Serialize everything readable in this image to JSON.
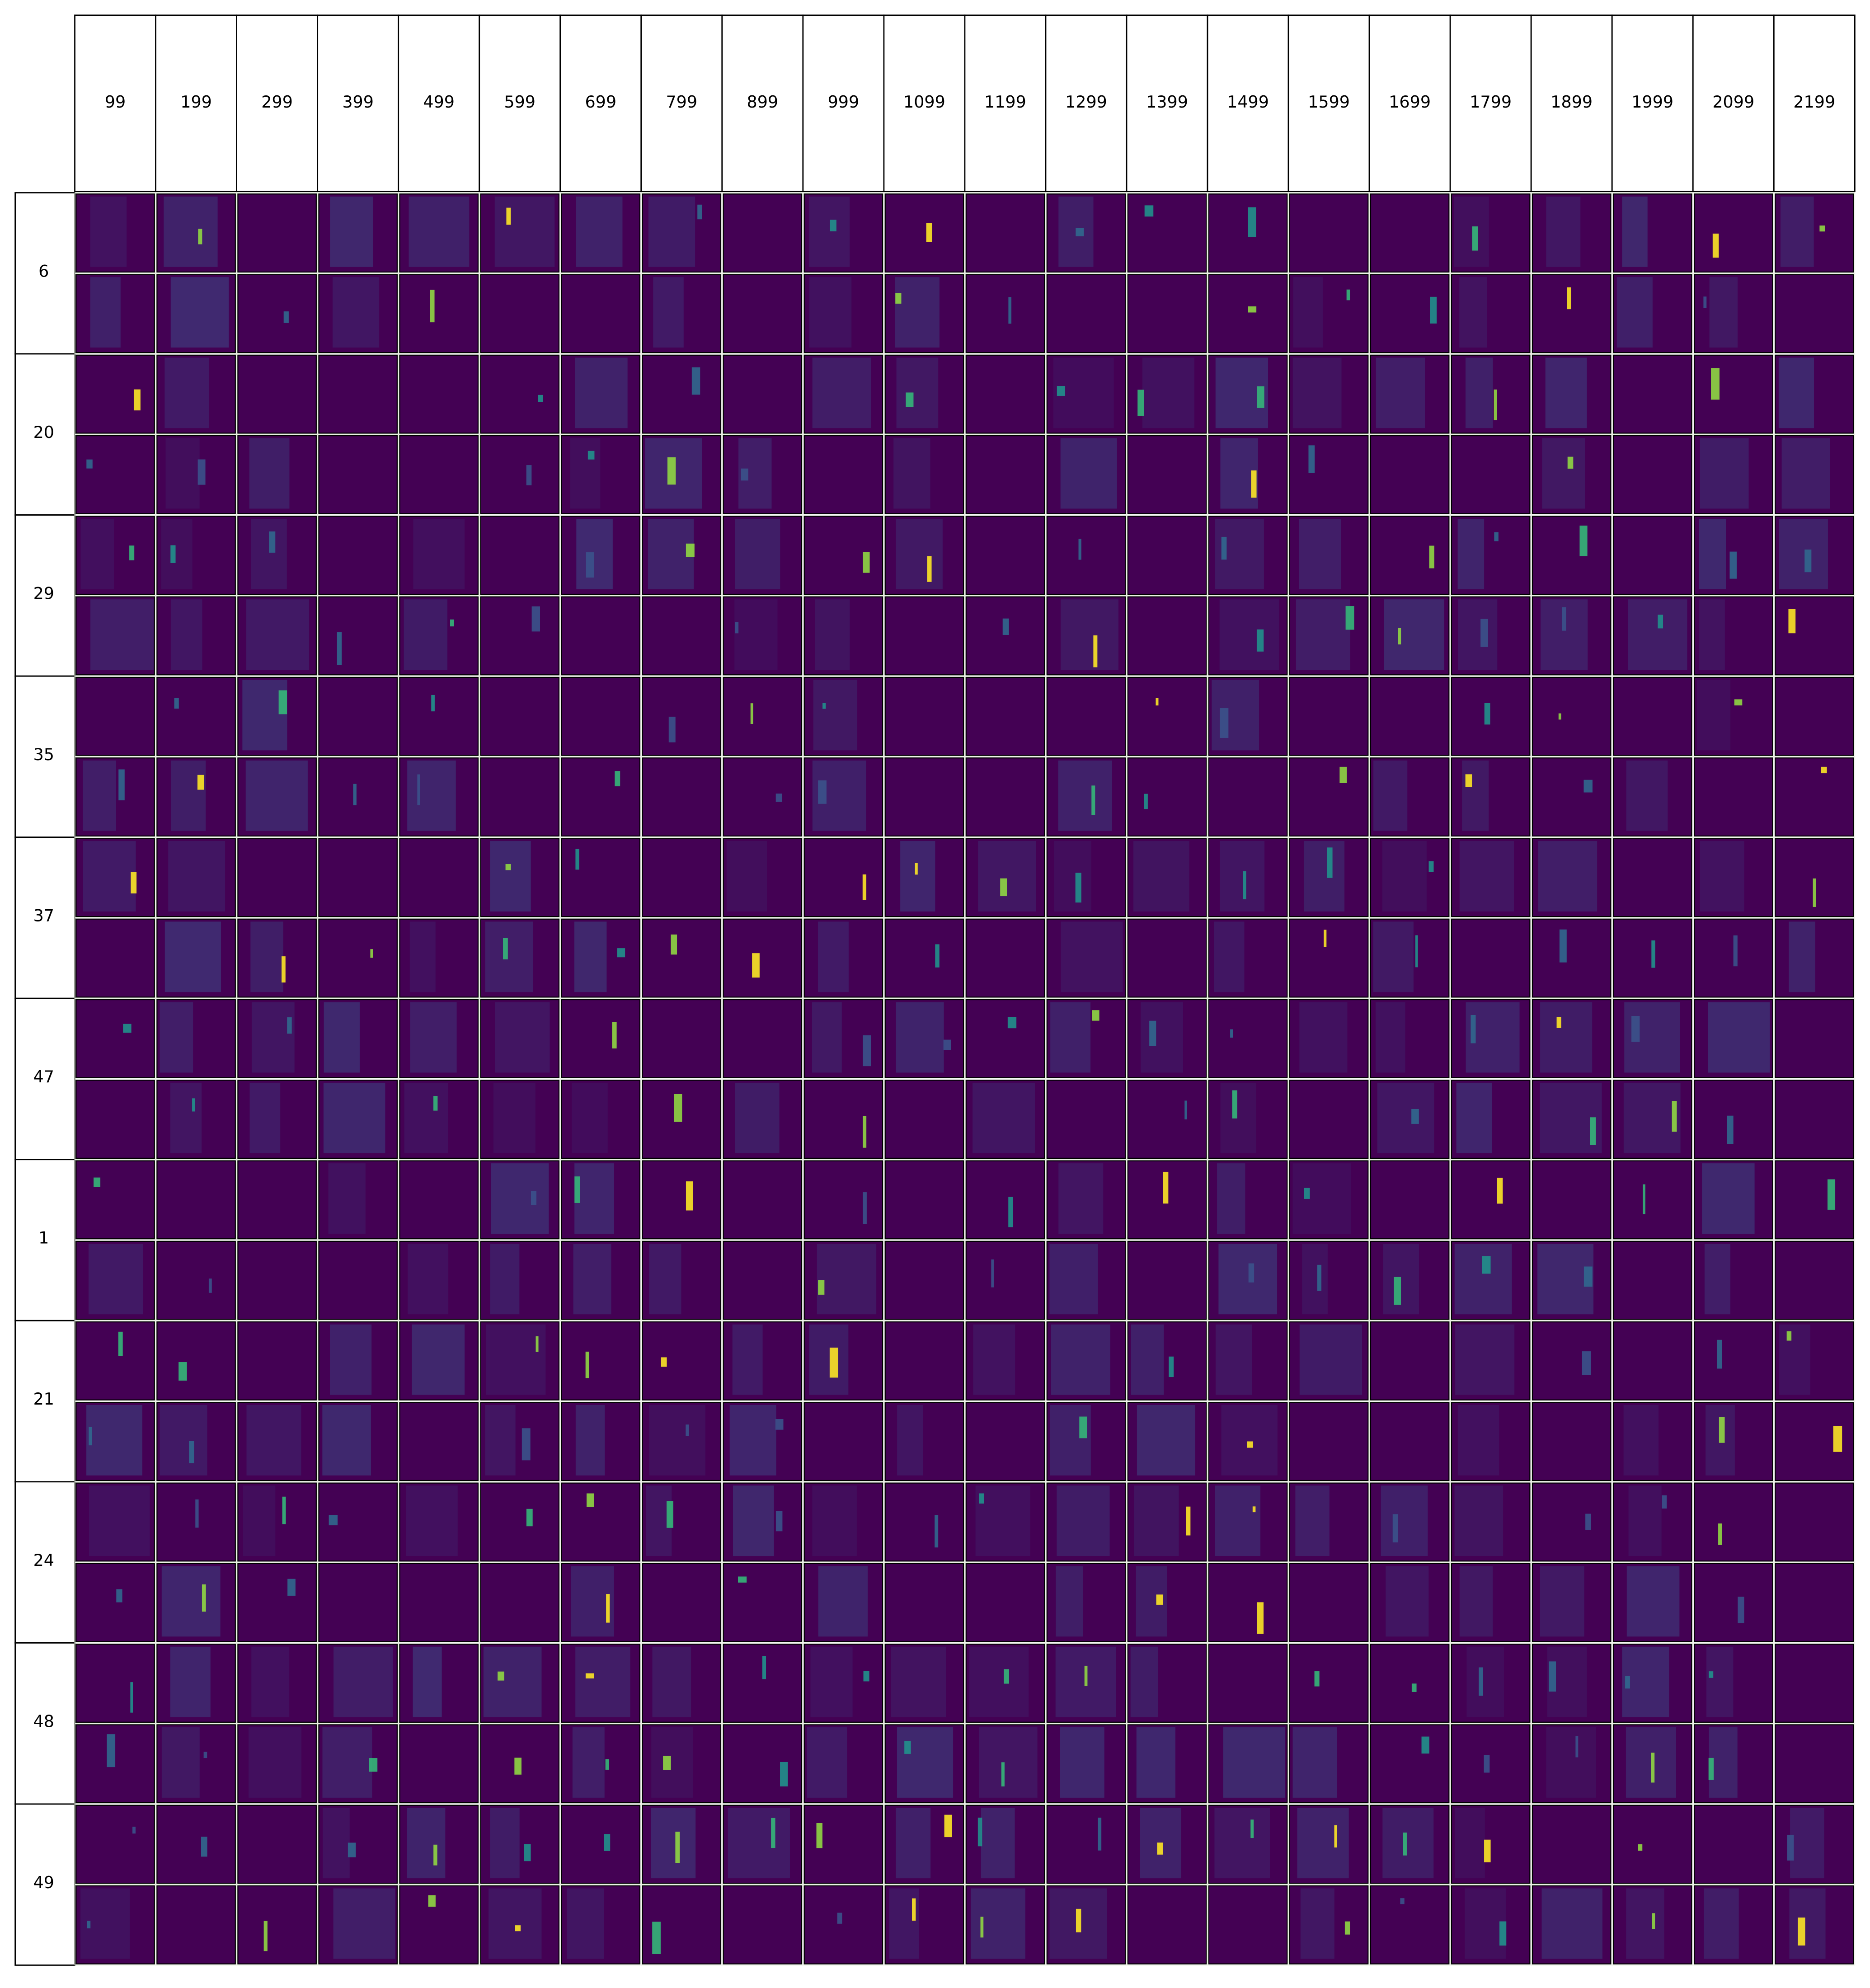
{
  "columns": [
    "99",
    "199",
    "299",
    "399",
    "499",
    "599",
    "699",
    "799",
    "899",
    "999",
    "1099",
    "1199",
    "1299",
    "1399",
    "1499",
    "1599",
    "1699",
    "1799",
    "1899",
    "1999",
    "2099",
    "2199"
  ],
  "rows": [
    "6",
    "20",
    "29",
    "35",
    "37",
    "47",
    "1",
    "21",
    "24",
    "48",
    "49"
  ]
}
